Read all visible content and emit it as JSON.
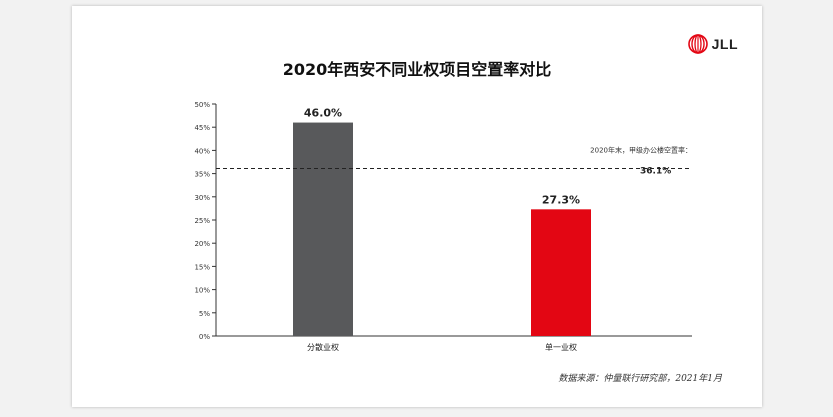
{
  "logo": {
    "text": "JLL",
    "icon": "jll-logo-icon",
    "color": "#e30613"
  },
  "chart_data": {
    "type": "bar",
    "title": "2020年西安不同业权项目空置率对比",
    "categories": [
      "分散业权",
      "单一业权"
    ],
    "values": [
      46.0,
      27.3
    ],
    "data_labels": [
      "46.0%",
      "27.3%"
    ],
    "colors": [
      "#58595b",
      "#e30613"
    ],
    "ylim": [
      0,
      50
    ],
    "yticks": [
      0,
      5,
      10,
      15,
      20,
      25,
      30,
      35,
      40,
      45,
      50
    ],
    "ytick_labels": [
      "0%",
      "5%",
      "10%",
      "15%",
      "20%",
      "25%",
      "30%",
      "35%",
      "40%",
      "45%",
      "50%"
    ],
    "xlabel": "",
    "ylabel": "",
    "grid": false,
    "reference_line": {
      "value": 36.1,
      "style": "dashed",
      "label": "2020年末，甲级办公楼空置率：",
      "value_label": "36.1%"
    }
  },
  "source": "数据来源：仲量联行研究部，2021年1月"
}
